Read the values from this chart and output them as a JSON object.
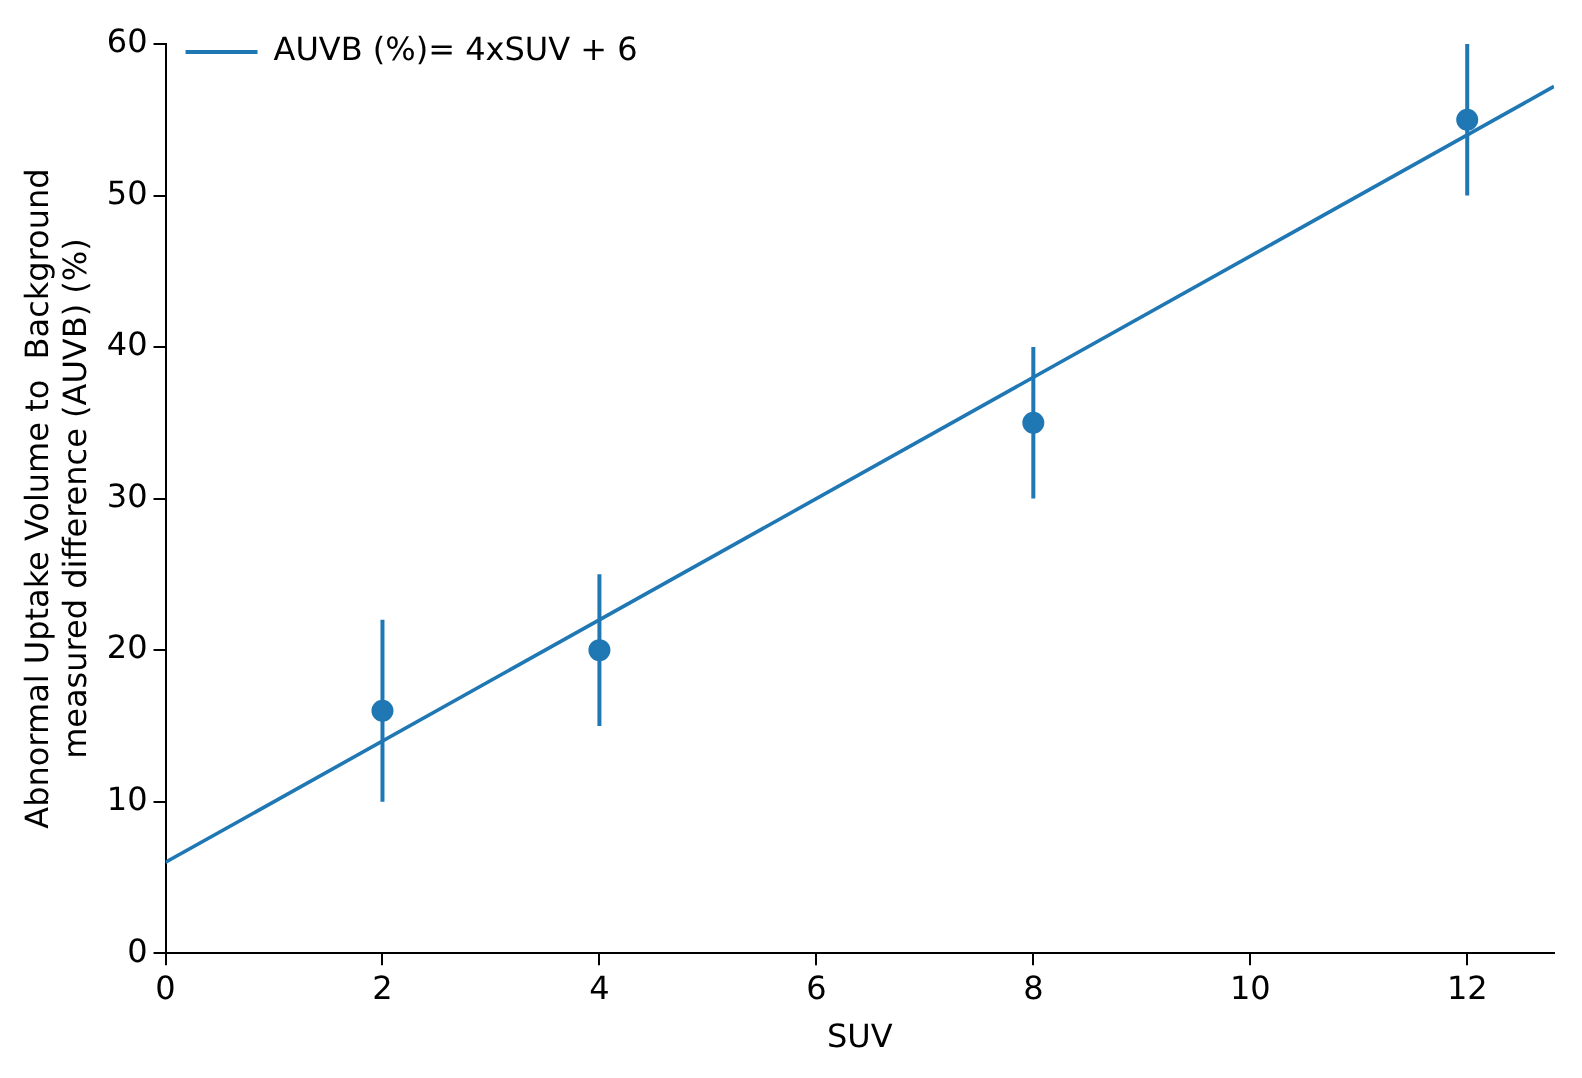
{
  "chart_data": {
    "type": "scatter",
    "xlabel": "SUV",
    "ylabel": "Abnormal Uptake Volume to  Background\nmeasured difference (AUVB) (%)",
    "xlim": [
      0,
      12.8
    ],
    "xticks": [
      0,
      2,
      4,
      6,
      8,
      10,
      12
    ],
    "ylim": [
      0,
      60
    ],
    "yticks": [
      0,
      10,
      20,
      30,
      40,
      50,
      60
    ],
    "grid": false,
    "legend": "top left",
    "series": [
      {
        "type": "scatter",
        "color": "#1f77b4",
        "marker": "circle",
        "x": [
          2,
          4,
          8,
          12
        ],
        "values": [
          16,
          20,
          35,
          55
        ],
        "errors": [
          [
            10,
            22
          ],
          [
            15,
            25
          ],
          [
            30,
            40
          ],
          [
            50,
            60
          ]
        ]
      },
      {
        "type": "line",
        "name": "AUVB (%)= 4xSUV + 6",
        "color": "#1f77b4",
        "marker": "none",
        "line_style": "solid",
        "x": [
          0,
          12.8
        ],
        "values": [
          6,
          57.2
        ]
      }
    ]
  }
}
